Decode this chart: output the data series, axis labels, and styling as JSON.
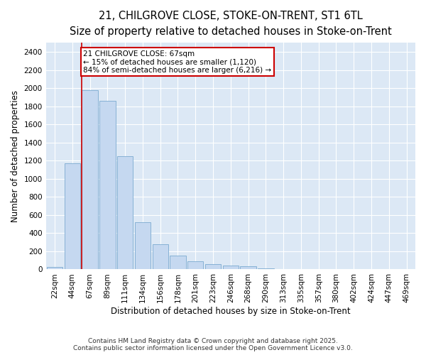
{
  "title_line1": "21, CHILGROVE CLOSE, STOKE-ON-TRENT, ST1 6TL",
  "title_line2": "Size of property relative to detached houses in Stoke-on-Trent",
  "xlabel": "Distribution of detached houses by size in Stoke-on-Trent",
  "ylabel": "Number of detached properties",
  "bins": [
    "22sqm",
    "44sqm",
    "67sqm",
    "89sqm",
    "111sqm",
    "134sqm",
    "156sqm",
    "178sqm",
    "201sqm",
    "223sqm",
    "246sqm",
    "268sqm",
    "290sqm",
    "313sqm",
    "335sqm",
    "357sqm",
    "380sqm",
    "402sqm",
    "424sqm",
    "447sqm",
    "469sqm"
  ],
  "values": [
    30,
    1170,
    1980,
    1860,
    1250,
    520,
    275,
    150,
    90,
    55,
    40,
    35,
    10,
    5,
    3,
    2,
    1,
    0,
    0,
    0,
    0
  ],
  "bar_color": "#c5d8f0",
  "bar_edge_color": "#7aaad0",
  "vline_color": "#cc0000",
  "annotation_text": "21 CHILGROVE CLOSE: 67sqm\n← 15% of detached houses are smaller (1,120)\n84% of semi-detached houses are larger (6,216) →",
  "annotation_box_color": "#ffffff",
  "annotation_box_edge": "#cc0000",
  "ylim": [
    0,
    2500
  ],
  "yticks": [
    0,
    200,
    400,
    600,
    800,
    1000,
    1200,
    1400,
    1600,
    1800,
    2000,
    2200,
    2400
  ],
  "figure_bg": "#ffffff",
  "plot_bg_color": "#dce8f5",
  "grid_color": "#ffffff",
  "footer_line1": "Contains HM Land Registry data © Crown copyright and database right 2025.",
  "footer_line2": "Contains public sector information licensed under the Open Government Licence v3.0.",
  "title_fontsize": 10.5,
  "subtitle_fontsize": 9.5,
  "axis_label_fontsize": 8.5,
  "tick_fontsize": 7.5,
  "annotation_fontsize": 7.5,
  "footer_fontsize": 6.5
}
